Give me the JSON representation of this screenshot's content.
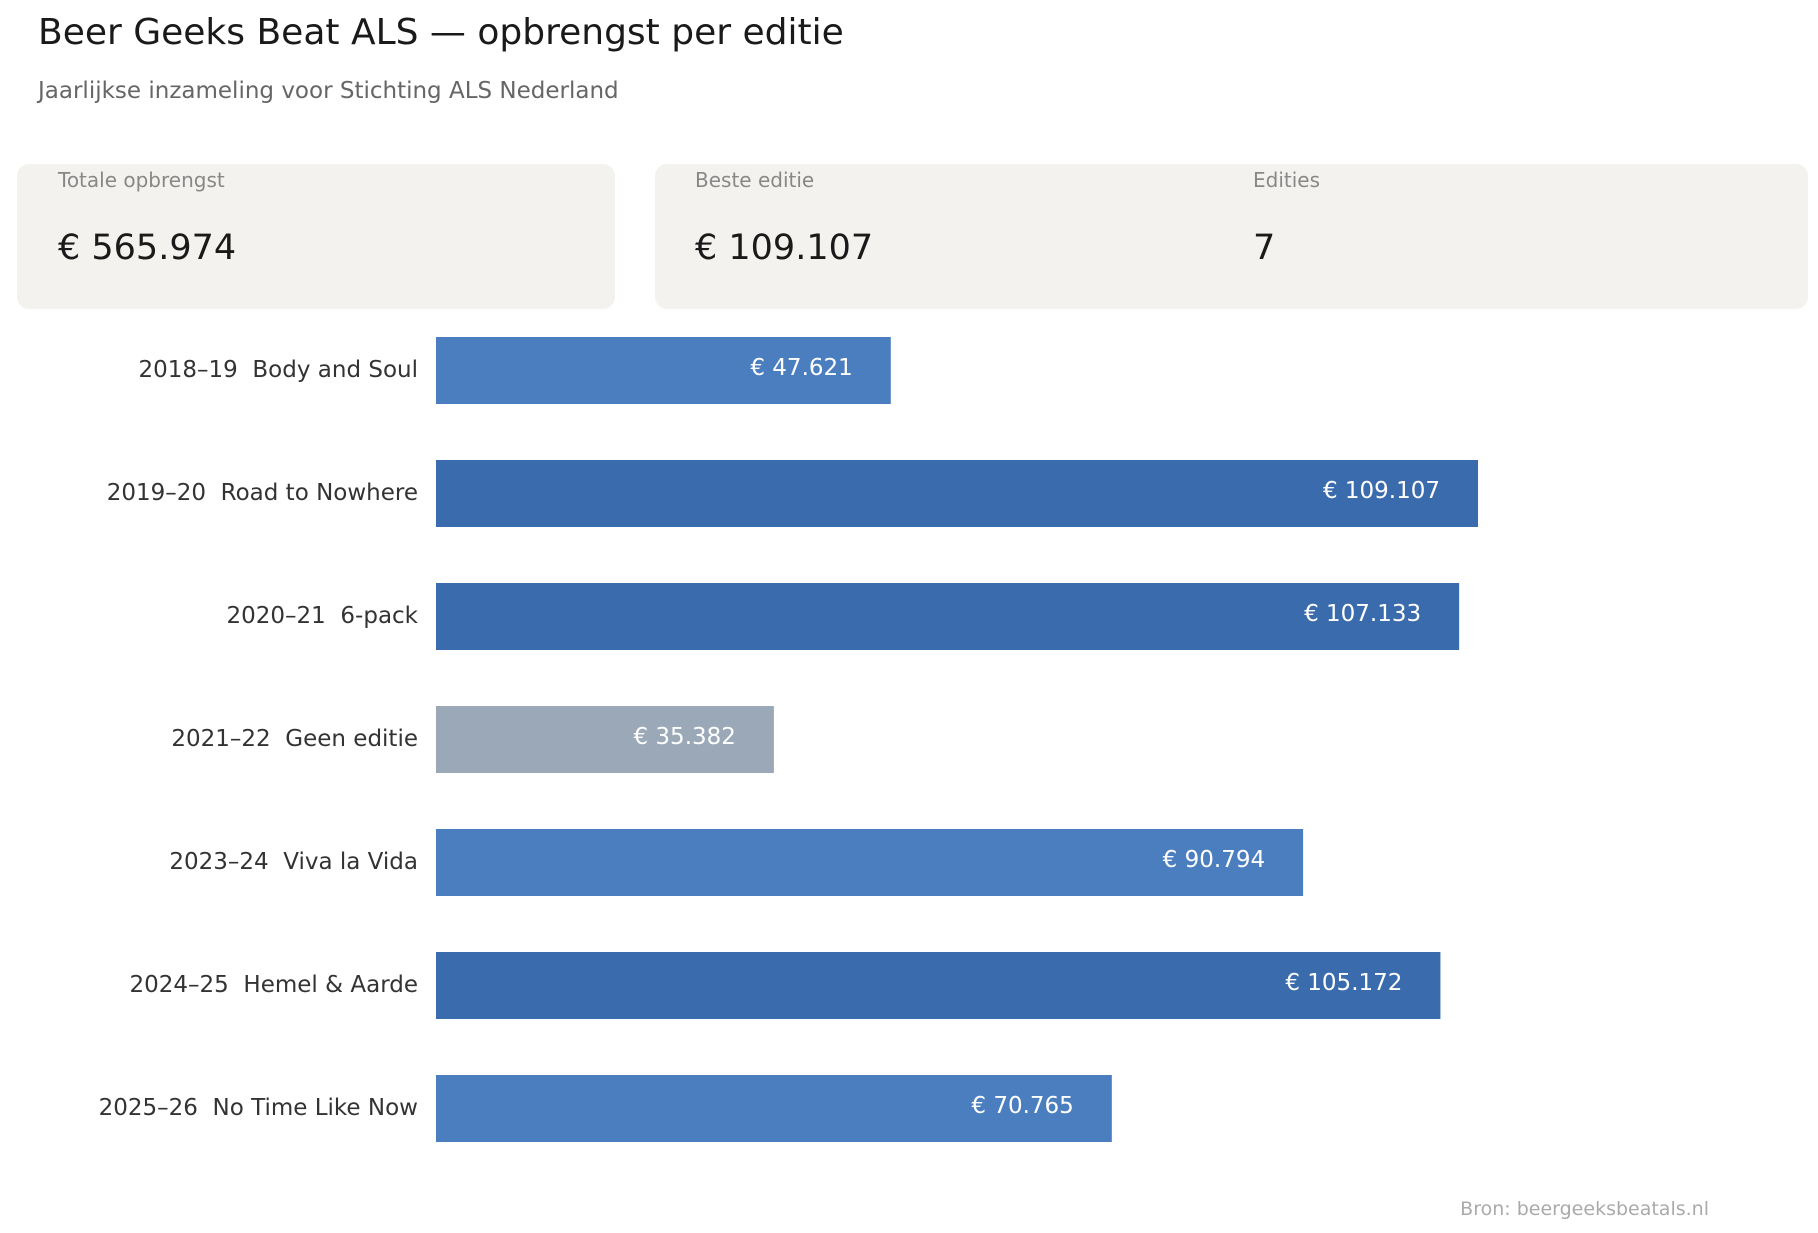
{
  "header": {
    "title": "Beer Geeks Beat ALS — opbrengst per editie",
    "subtitle": "Jaarlijkse inzameling voor Stichting ALS Nederland"
  },
  "kpis": [
    {
      "label": "Totale opbrengst",
      "value": "€ 565.974"
    },
    {
      "label": "Beste editie",
      "value": "€ 109.107"
    },
    {
      "label": "Edities",
      "value": "7"
    }
  ],
  "chart_data": {
    "type": "bar",
    "orientation": "horizontal",
    "categories": [
      "2018–19  Body and Soul",
      "2019–20  Road to Nowhere",
      "2020–21  6-pack",
      "2021–22  Geen editie",
      "2023–24  Viva la Vida",
      "2024–25  Hemel & Aarde",
      "2025–26  No Time Like Now"
    ],
    "values": [
      47621,
      109107,
      107133,
      35382,
      90794,
      105172,
      70765
    ],
    "value_labels": [
      "€ 47.621",
      "€ 109.107",
      "€ 107.133",
      "€ 35.382",
      "€ 90.794",
      "€ 105.172",
      "€ 70.765"
    ],
    "colors": [
      "#4a7ebf",
      "#3a6cad",
      "#3a6cad",
      "#9aa8b8",
      "#4a7ebf",
      "#3a6cad",
      "#4a7ebf"
    ]
  },
  "footer": {
    "source": "Bron: beergeeksbeatals.nl"
  }
}
